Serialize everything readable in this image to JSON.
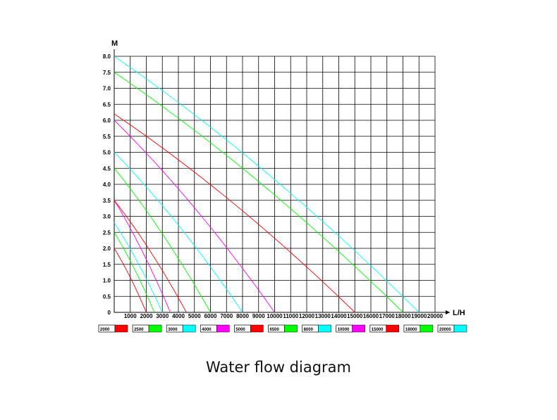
{
  "caption": "Water flow diagram",
  "chart_data": {
    "type": "line",
    "title": "",
    "xlabel": "L/H",
    "ylabel": "M",
    "xlim": [
      0,
      20000
    ],
    "ylim": [
      0,
      8.0
    ],
    "grid": true,
    "x_ticks": [
      "1000",
      "2000",
      "3000",
      "4000",
      "5000",
      "6000",
      "7000",
      "8000",
      "9000",
      "10000",
      "11000",
      "12000",
      "13000",
      "14000",
      "15000",
      "16000",
      "17000",
      "18000",
      "19000",
      "20000"
    ],
    "y_ticks": [
      "0",
      "0.5",
      "1.0",
      "1.5",
      "2.0",
      "2.5",
      "3.0",
      "3.5",
      "4.0",
      "4.5",
      "5.0",
      "5.5",
      "6.0",
      "6.5",
      "7.0",
      "7.5",
      "8.0"
    ],
    "legend_position": "bottom",
    "series": [
      {
        "name": "2000",
        "color": "#ff0000",
        "x": [
          0,
          2000
        ],
        "y": [
          2.0,
          0
        ]
      },
      {
        "name": "2500",
        "color": "#00ff00",
        "x": [
          0,
          2500
        ],
        "y": [
          2.5,
          0
        ]
      },
      {
        "name": "3000",
        "color": "#00ffff",
        "x": [
          0,
          3000
        ],
        "y": [
          2.8,
          0
        ]
      },
      {
        "name": "4000",
        "color": "#ff00ff",
        "x": [
          0,
          3500
        ],
        "y": [
          3.5,
          0
        ]
      },
      {
        "name": "5000",
        "color": "#ff0000",
        "x": [
          0,
          4500
        ],
        "y": [
          3.5,
          0
        ]
      },
      {
        "name": "6500",
        "color": "#00ff00",
        "x": [
          0,
          6000
        ],
        "y": [
          4.5,
          0
        ]
      },
      {
        "name": "8000",
        "color": "#00ffff",
        "x": [
          0,
          8000
        ],
        "y": [
          5.0,
          0
        ]
      },
      {
        "name": "10000",
        "color": "#ff00ff",
        "x": [
          0,
          10000
        ],
        "y": [
          6.0,
          0
        ]
      },
      {
        "name": "15000",
        "color": "#ff0000",
        "x": [
          0,
          15000
        ],
        "y": [
          6.2,
          0
        ]
      },
      {
        "name": "18000",
        "color": "#00ff00",
        "x": [
          0,
          18000
        ],
        "y": [
          7.5,
          0
        ]
      },
      {
        "name": "20000",
        "color": "#00ffff",
        "x": [
          0,
          19000
        ],
        "y": [
          8.0,
          0
        ]
      }
    ]
  }
}
